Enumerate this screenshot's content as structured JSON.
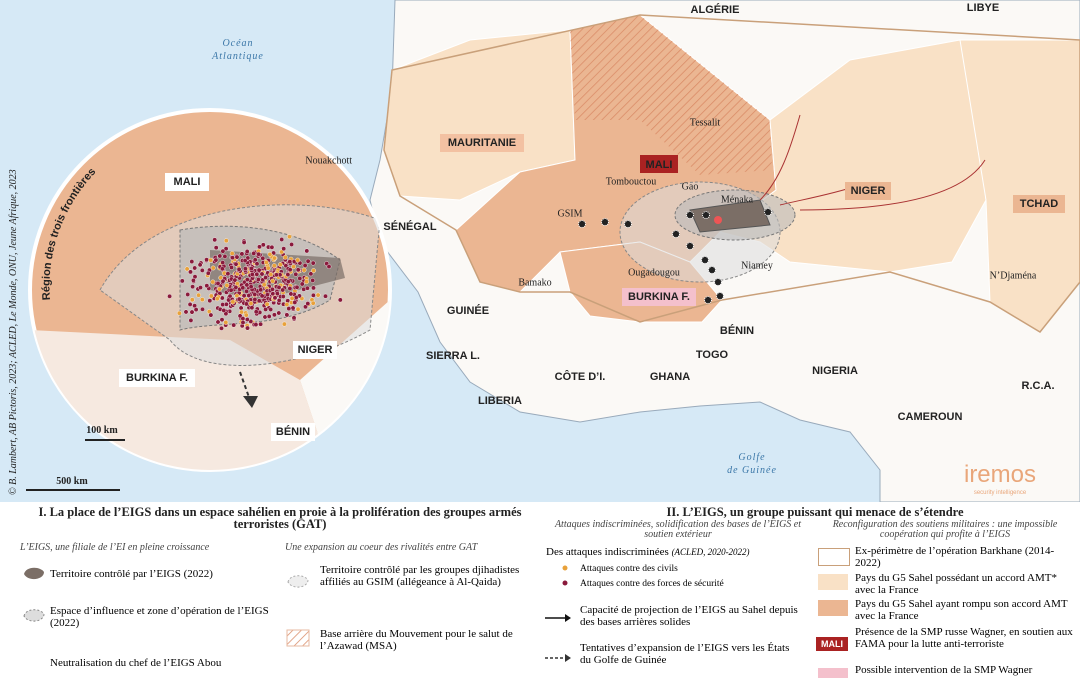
{
  "map": {
    "countries": [
      "ALGÉRIE",
      "LIBYE",
      "MAURITANIE",
      "MALI",
      "NIGER",
      "TCHAD",
      "SÉNÉGAL",
      "GUINÉE",
      "SIERRA L.",
      "LIBERIA",
      "CÔTE D’I.",
      "GHANA",
      "TOGO",
      "BÉNIN",
      "NIGERIA",
      "CAMEROUN",
      "R.C.A.",
      "BURKINA F."
    ],
    "cities": [
      "Nouakchott",
      "Tessalit",
      "Tombouctou",
      "Gao",
      "Ménaka",
      "Bamako",
      "Ougadougou",
      "Niamey",
      "N’Djaména",
      "GSIM"
    ],
    "seas": [
      "Océan",
      "Atlantique",
      "Golfe",
      "de Guinée"
    ],
    "scale": "500 km",
    "credit": "© B. Lambert, AB Pictoris, 2023; ACLED, Le Monde, ONU, Jeune Afrique, 2023",
    "logo": "iremos",
    "logo_sub": "security intelligence"
  },
  "inset": {
    "title": "Région des trois frontières",
    "labels": [
      "MALI",
      "NIGER",
      "BURKINA F.",
      "BÉNIN"
    ],
    "scale": "100 km"
  },
  "legend": {
    "section1": {
      "title": "I.   La place de l’EIGS dans un espace sahélien en proie à la prolifération des groupes armés terroristes (GAT)",
      "col1_title": "L’EIGS, une filiale de l’EI en pleine croissance",
      "col1_items": [
        "Territoire contrôlé par l’EIGS (2022)",
        "Espace d’influence et zone d’opération de l’EIGS (2022)",
        "Neutralisation du chef de l’EIGS Abou"
      ],
      "col2_title": "Une expansion au coeur des rivalités entre GAT",
      "col2_items": [
        "Territoire contrôlé par les groupes djihadistes affiliés au GSIM (allégeance à Al-Qaida)",
        "Base arrière du Mouvement pour le salut de l’Azawad (MSA)"
      ]
    },
    "section2": {
      "title": "II.   L’EIGS, un groupe puissant qui menace de s’étendre",
      "col1_title": "Attaques indiscriminées, solidification des bases de l’EIGS et soutien extérieur",
      "attacks_title": "Des attaques indiscriminées",
      "attacks_source": "(ACLED, 2020-2022)",
      "col1_items": [
        "Attaques contre des civils",
        "Attaques contre des forces de sécurité",
        "Capacité de projection de l’EIGS au Sahel depuis des bases arrières solides",
        "Tentatives d’expansion de l’EIGS vers les États du Golfe de Guinée"
      ],
      "col2_title": "Reconfiguration des soutiens militaires : une impossible coopération qui profite à l’EIGS",
      "col2_items": [
        "Ex-périmètre de l’opération Barkhane (2014-2022)",
        "Pays du G5 Sahel possédant un accord AMT* avec la France",
        "Pays du G5 Sahel ayant rompu son accord AMT avec la France",
        "Présence de la SMP russe Wagner, en soutien aux FAMA pour la lutte anti-terroriste",
        "Possible intervention de la SMP Wagner"
      ],
      "wagner_tag": "MALI"
    }
  }
}
